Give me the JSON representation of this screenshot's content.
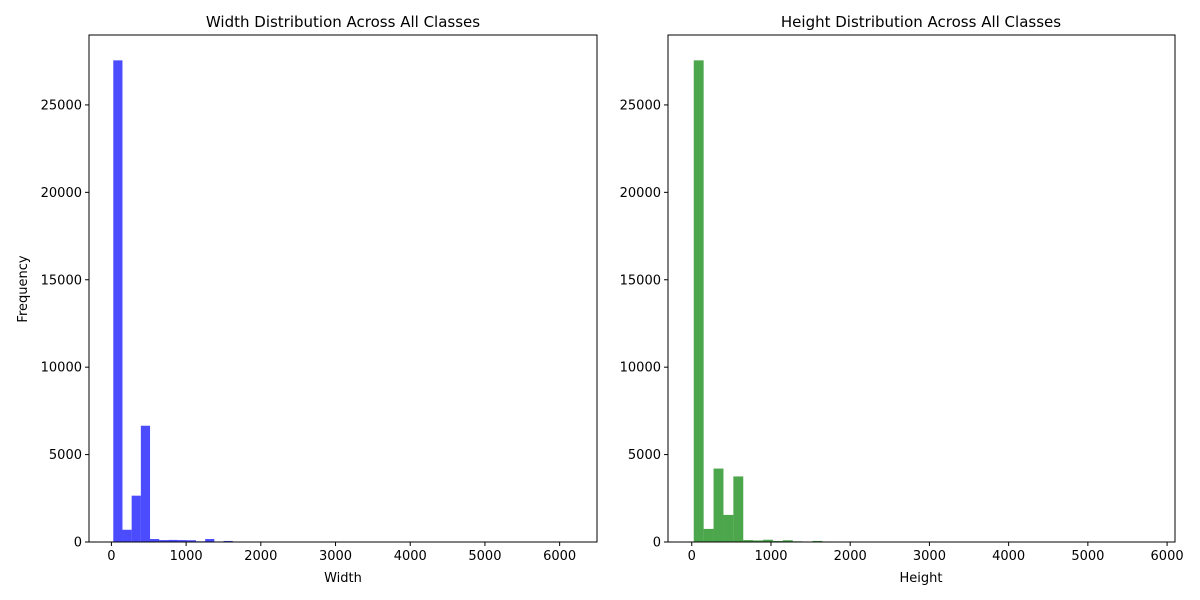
{
  "chart_data": [
    {
      "type": "bar",
      "title": "Width Distribution Across All Classes",
      "xlabel": "Width",
      "ylabel": "Frequency",
      "color": "#0000ff",
      "opacity": 0.7,
      "xlim": [
        -300,
        6500
      ],
      "ylim": [
        0,
        29000
      ],
      "xticks": [
        0,
        1000,
        2000,
        3000,
        4000,
        5000,
        6000
      ],
      "yticks": [
        0,
        5000,
        10000,
        15000,
        20000,
        25000
      ],
      "bin_width": 123,
      "bins": [
        {
          "x0": 25,
          "value": 27550
        },
        {
          "x0": 148,
          "value": 700
        },
        {
          "x0": 271,
          "value": 2650
        },
        {
          "x0": 394,
          "value": 6650
        },
        {
          "x0": 517,
          "value": 170
        },
        {
          "x0": 640,
          "value": 110
        },
        {
          "x0": 763,
          "value": 120
        },
        {
          "x0": 886,
          "value": 110
        },
        {
          "x0": 1009,
          "value": 100
        },
        {
          "x0": 1132,
          "value": 40
        },
        {
          "x0": 1255,
          "value": 170
        },
        {
          "x0": 1378,
          "value": 30
        },
        {
          "x0": 1501,
          "value": 60
        },
        {
          "x0": 1624,
          "value": 15
        },
        {
          "x0": 1747,
          "value": 8
        },
        {
          "x0": 1870,
          "value": 5
        }
      ]
    },
    {
      "type": "bar",
      "title": "Height Distribution Across All Classes",
      "xlabel": "Height",
      "ylabel": "",
      "color": "#008000",
      "opacity": 0.7,
      "xlim": [
        -300,
        6100
      ],
      "ylim": [
        0,
        29000
      ],
      "xticks": [
        0,
        1000,
        2000,
        3000,
        4000,
        5000,
        6000
      ],
      "yticks": [
        0,
        5000,
        10000,
        15000,
        20000,
        25000
      ],
      "bin_width": 125,
      "bins": [
        {
          "x0": 25,
          "value": 27550
        },
        {
          "x0": 150,
          "value": 750
        },
        {
          "x0": 275,
          "value": 4200
        },
        {
          "x0": 400,
          "value": 1550
        },
        {
          "x0": 525,
          "value": 3750
        },
        {
          "x0": 650,
          "value": 110
        },
        {
          "x0": 775,
          "value": 90
        },
        {
          "x0": 900,
          "value": 130
        },
        {
          "x0": 1025,
          "value": 60
        },
        {
          "x0": 1150,
          "value": 100
        },
        {
          "x0": 1275,
          "value": 40
        },
        {
          "x0": 1400,
          "value": 20
        },
        {
          "x0": 1525,
          "value": 60
        },
        {
          "x0": 1650,
          "value": 30
        },
        {
          "x0": 1775,
          "value": 10
        },
        {
          "x0": 1900,
          "value": 5
        }
      ]
    }
  ]
}
